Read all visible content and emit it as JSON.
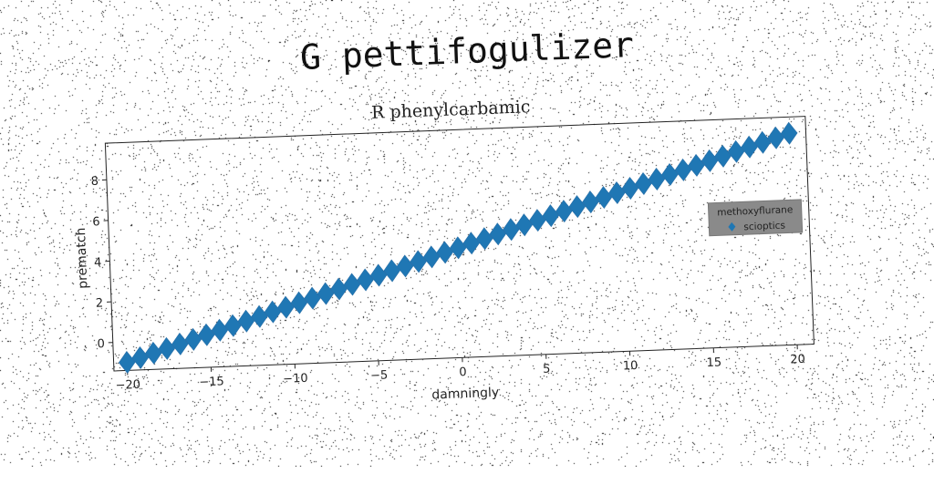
{
  "page": {
    "suptitle": "G pettifogulizer"
  },
  "chart_data": {
    "type": "scatter",
    "title": "R phenylcarbamic",
    "xlabel": "damningly",
    "ylabel": "prematch",
    "xlim": [
      -20.8,
      21.0
    ],
    "ylim": [
      -1.4,
      9.8
    ],
    "x_ticks": [
      -20,
      -15,
      -10,
      -5,
      0,
      5,
      10,
      15,
      20
    ],
    "y_ticks": [
      0,
      2,
      4,
      6,
      8
    ],
    "grid": false,
    "legend": {
      "title": "methoxyflurane",
      "placement": "right",
      "entries": [
        "scioptics"
      ]
    },
    "series": [
      {
        "name": "scioptics",
        "color": "#1f77b4",
        "marker": "diamond",
        "x": [
          -20,
          -19.2,
          -18.4,
          -17.6,
          -16.8,
          -16,
          -15.2,
          -14.4,
          -13.6,
          -12.8,
          -12,
          -11.2,
          -10.4,
          -9.6,
          -8.8,
          -8,
          -7.2,
          -6.4,
          -5.6,
          -4.8,
          -4,
          -3.2,
          -2.4,
          -1.6,
          -0.8,
          0,
          0.8,
          1.6,
          2.4,
          3.2,
          4,
          4.8,
          5.6,
          6.4,
          7.2,
          8,
          8.8,
          9.6,
          10.4,
          11.2,
          12,
          12.8,
          13.6,
          14.4,
          15.2,
          16,
          16.8,
          17.6,
          18.4,
          19.2,
          20
        ],
        "y": [
          -1,
          -0.8,
          -0.6,
          -0.4,
          -0.2,
          0,
          0.2,
          0.4,
          0.6,
          0.8,
          1,
          1.2,
          1.4,
          1.6,
          1.8,
          2,
          2.2,
          2.4,
          2.6,
          2.8,
          3,
          3.2,
          3.4,
          3.6,
          3.8,
          4,
          4.2,
          4.4,
          4.6,
          4.8,
          5,
          5.2,
          5.4,
          5.6,
          5.8,
          6,
          6.2,
          6.4,
          6.6,
          6.8,
          7,
          7.2,
          7.4,
          7.6,
          7.8,
          8,
          8.2,
          8.4,
          8.6,
          8.8,
          9
        ]
      }
    ]
  }
}
